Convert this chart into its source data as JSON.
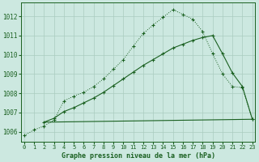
{
  "bg_color": "#cce8e0",
  "grid_color": "#aaccc0",
  "line_color": "#1a6020",
  "title": "Graphe pression niveau de la mer (hPa)",
  "xlim": [
    -0.3,
    23.3
  ],
  "ylim": [
    1005.5,
    1012.7
  ],
  "yticks": [
    1006,
    1007,
    1008,
    1009,
    1010,
    1011,
    1012
  ],
  "xticks": [
    0,
    1,
    2,
    3,
    4,
    5,
    6,
    7,
    8,
    9,
    10,
    11,
    12,
    13,
    14,
    15,
    16,
    17,
    18,
    19,
    20,
    21,
    22,
    23
  ],
  "line1_x": [
    0,
    1,
    2,
    3,
    4,
    5,
    6,
    7,
    8,
    9,
    10,
    11,
    12,
    13,
    14,
    15,
    16,
    17,
    18,
    19,
    20,
    21,
    22,
    23
  ],
  "line1_y": [
    1005.8,
    1006.1,
    1006.3,
    1006.6,
    1007.6,
    1007.85,
    1008.05,
    1008.35,
    1008.75,
    1009.25,
    1009.75,
    1010.45,
    1011.1,
    1011.55,
    1011.95,
    1012.35,
    1012.1,
    1011.85,
    1011.2,
    1010.05,
    1009.0,
    1008.35,
    1008.3,
    1006.65
  ],
  "line2_x": [
    2,
    3,
    4,
    5,
    6,
    7,
    8,
    9,
    10,
    11,
    12,
    13,
    14,
    15,
    16,
    17,
    18,
    19,
    20,
    21,
    22,
    23
  ],
  "line2_y": [
    1006.5,
    1006.7,
    1007.05,
    1007.25,
    1007.5,
    1007.75,
    1008.05,
    1008.4,
    1008.75,
    1009.1,
    1009.45,
    1009.75,
    1010.05,
    1010.35,
    1010.55,
    1010.75,
    1010.9,
    1011.0,
    1010.05,
    1009.05,
    1008.35,
    1006.65
  ],
  "line3_x": [
    2,
    23
  ],
  "line3_y": [
    1006.5,
    1006.65
  ]
}
